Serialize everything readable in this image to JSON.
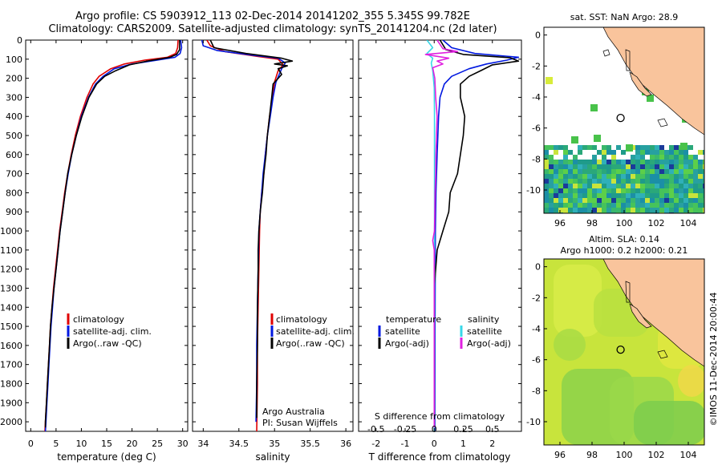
{
  "header": {
    "line1": "Argo profile: CS 5903912_113 02-Dec-2014 20141202_355 5.345S 99.782E",
    "line2": "Climatology: CARS2009. Satellite-adjusted climatology: synTS_20141204.nc (2d later)"
  },
  "colors": {
    "climatology": "#e00000",
    "satellite": "#0018e0",
    "argo": "#000000",
    "satellite_salinity": "#38d8e8",
    "argo_salinity_adj": "#e020e0",
    "land": "#f9c49c"
  },
  "chart_data": [
    {
      "type": "line",
      "name": "temperature-profile",
      "xlabel": "temperature (deg C)",
      "ylim": [
        2050,
        0
      ],
      "xlim": [
        -1,
        31
      ],
      "xticks": [
        0,
        5,
        10,
        15,
        20,
        25,
        30
      ],
      "yticks": [
        0,
        100,
        200,
        300,
        400,
        500,
        600,
        700,
        800,
        900,
        1000,
        1100,
        1200,
        1300,
        1400,
        1500,
        1600,
        1700,
        1800,
        1900,
        2000
      ],
      "legend": [
        "climatology",
        "satellite-adj. clim.",
        "Argo(..raw -QC)"
      ],
      "series": [
        {
          "name": "climatology",
          "color": "#e00000",
          "points": [
            [
              29.1,
              0
            ],
            [
              29.0,
              40
            ],
            [
              28.6,
              70
            ],
            [
              27.0,
              90
            ],
            [
              22.5,
              105
            ],
            [
              18.5,
              125
            ],
            [
              15.8,
              150
            ],
            [
              13.5,
              190
            ],
            [
              12.3,
              230
            ],
            [
              11.1,
              300
            ],
            [
              9.8,
              400
            ],
            [
              8.8,
              500
            ],
            [
              8.0,
              600
            ],
            [
              7.3,
              700
            ],
            [
              6.7,
              800
            ],
            [
              6.2,
              900
            ],
            [
              5.7,
              1000
            ],
            [
              5.3,
              1100
            ],
            [
              4.9,
              1200
            ],
            [
              4.5,
              1300
            ],
            [
              4.2,
              1400
            ],
            [
              3.9,
              1500
            ],
            [
              3.7,
              1600
            ],
            [
              3.5,
              1700
            ],
            [
              3.3,
              1800
            ],
            [
              3.1,
              1900
            ],
            [
              2.9,
              2000
            ],
            [
              2.8,
              2050
            ]
          ]
        },
        {
          "name": "satellite-adj. clim.",
          "color": "#0018e0",
          "points": [
            [
              29.6,
              0
            ],
            [
              29.8,
              40
            ],
            [
              29.5,
              70
            ],
            [
              28.5,
              90
            ],
            [
              25.0,
              105
            ],
            [
              20.0,
              125
            ],
            [
              16.5,
              150
            ],
            [
              14.3,
              190
            ],
            [
              12.8,
              230
            ],
            [
              11.4,
              300
            ],
            [
              10.0,
              400
            ],
            [
              9.0,
              500
            ],
            [
              8.1,
              600
            ],
            [
              7.4,
              700
            ],
            [
              6.8,
              800
            ],
            [
              6.3,
              900
            ],
            [
              5.8,
              1000
            ],
            [
              5.4,
              1100
            ],
            [
              5.0,
              1200
            ],
            [
              4.6,
              1300
            ],
            [
              4.3,
              1400
            ],
            [
              4.0,
              1500
            ],
            [
              3.8,
              1600
            ],
            [
              3.6,
              1700
            ],
            [
              3.4,
              1800
            ],
            [
              3.2,
              1900
            ],
            [
              3.0,
              2000
            ],
            [
              2.9,
              2050
            ]
          ]
        },
        {
          "name": "Argo(..raw -QC)",
          "color": "#000000",
          "points": [
            [
              29.4,
              0
            ],
            [
              29.4,
              50
            ],
            [
              28.8,
              75
            ],
            [
              27.5,
              90
            ],
            [
              23.0,
              110
            ],
            [
              19.5,
              130
            ],
            [
              16.8,
              160
            ],
            [
              14.6,
              190
            ],
            [
              13.0,
              230
            ],
            [
              11.5,
              300
            ],
            [
              10.1,
              400
            ],
            [
              9.0,
              500
            ],
            [
              8.1,
              600
            ],
            [
              7.3,
              700
            ],
            [
              6.8,
              800
            ],
            [
              6.3,
              900
            ],
            [
              5.8,
              1000
            ],
            [
              5.4,
              1100
            ],
            [
              5.0,
              1200
            ],
            [
              4.6,
              1300
            ],
            [
              4.2,
              1400
            ],
            [
              3.9,
              1500
            ],
            [
              3.7,
              1600
            ],
            [
              3.5,
              1700
            ],
            [
              3.3,
              1800
            ],
            [
              3.1,
              1900
            ],
            [
              2.9,
              2000
            ],
            [
              2.9,
              2030
            ]
          ]
        }
      ]
    },
    {
      "type": "line",
      "name": "salinity-profile",
      "xlabel": "salinity",
      "ylim": [
        2050,
        0
      ],
      "xlim": [
        33.85,
        36.1
      ],
      "xticks": [
        34,
        34.5,
        35,
        35.5,
        36
      ],
      "xticklabels": [
        "34",
        "34.5",
        "35",
        "35.5",
        "36"
      ],
      "legend": [
        "climatology",
        "satellite-adj. clim.",
        "Argo(..raw -QC)"
      ],
      "annotation": [
        "Argo Australia",
        "PI: Susan Wijffels"
      ],
      "series": [
        {
          "name": "climatology",
          "color": "#e00000",
          "points": [
            [
              34.05,
              0
            ],
            [
              34.1,
              30
            ],
            [
              34.3,
              60
            ],
            [
              34.75,
              85
            ],
            [
              35.05,
              100
            ],
            [
              35.12,
              130
            ],
            [
              35.05,
              160
            ],
            [
              35.0,
              220
            ],
            [
              34.97,
              300
            ],
            [
              34.93,
              400
            ],
            [
              34.9,
              500
            ],
            [
              34.87,
              600
            ],
            [
              34.85,
              700
            ],
            [
              34.82,
              800
            ],
            [
              34.8,
              900
            ],
            [
              34.79,
              1000
            ],
            [
              34.78,
              1200
            ],
            [
              34.77,
              1400
            ],
            [
              34.76,
              1600
            ],
            [
              34.76,
              1800
            ],
            [
              34.75,
              2050
            ]
          ]
        },
        {
          "name": "satellite-adj. clim.",
          "color": "#0018e0",
          "points": [
            [
              33.98,
              0
            ],
            [
              34.0,
              30
            ],
            [
              34.2,
              55
            ],
            [
              34.7,
              80
            ],
            [
              35.05,
              95
            ],
            [
              35.15,
              120
            ],
            [
              35.1,
              150
            ],
            [
              35.02,
              220
            ],
            [
              34.98,
              300
            ],
            [
              34.94,
              400
            ],
            [
              34.9,
              500
            ],
            [
              34.87,
              600
            ],
            [
              34.84,
              700
            ],
            [
              34.82,
              800
            ],
            [
              34.8,
              900
            ],
            [
              34.78,
              1000
            ],
            [
              34.77,
              1200
            ],
            [
              34.76,
              1400
            ],
            [
              34.75,
              1600
            ],
            [
              34.75,
              1800
            ],
            [
              34.74,
              2000
            ]
          ]
        },
        {
          "name": "Argo(..raw -QC)",
          "color": "#000000",
          "points": [
            [
              34.1,
              0
            ],
            [
              34.15,
              40
            ],
            [
              34.6,
              70
            ],
            [
              35.1,
              95
            ],
            [
              35.25,
              110
            ],
            [
              35.0,
              125
            ],
            [
              35.18,
              135
            ],
            [
              35.05,
              150
            ],
            [
              35.1,
              180
            ],
            [
              34.98,
              230
            ],
            [
              34.96,
              300
            ],
            [
              34.93,
              400
            ],
            [
              34.9,
              500
            ],
            [
              34.88,
              600
            ],
            [
              34.85,
              700
            ],
            [
              34.83,
              800
            ],
            [
              34.8,
              900
            ],
            [
              34.78,
              1000
            ],
            [
              34.77,
              1100
            ],
            [
              34.77,
              1200
            ],
            [
              34.76,
              1400
            ],
            [
              34.76,
              1600
            ],
            [
              34.75,
              1800
            ],
            [
              34.75,
              1980
            ]
          ]
        }
      ]
    },
    {
      "type": "line",
      "name": "difference-profile",
      "xlabel": "T difference from climatology",
      "xlabel_top": "S difference from climatology",
      "ylim": [
        2050,
        0
      ],
      "xlim": [
        -2.6,
        3.0
      ],
      "xticks": [
        -2,
        -1,
        0,
        1,
        2
      ],
      "xticklabels": [
        "-2",
        "-1",
        "0",
        "1",
        "2"
      ],
      "sticks": [
        -0.5,
        -0.25,
        0,
        0.25,
        0.5
      ],
      "sticklabels": [
        "-0.5",
        "-0.25",
        "0",
        "0.25",
        "0.5"
      ],
      "legend_temperature_title": "temperature",
      "legend_salinity_title": "salinity",
      "legend_temperature": [
        "satellite",
        "Argo(-adj)"
      ],
      "legend_salinity": [
        "satellite",
        "Argo(-adj)"
      ],
      "series": [
        {
          "name": "satellite",
          "color": "#0018e0",
          "points": [
            [
              0.3,
              0
            ],
            [
              0.6,
              40
            ],
            [
              1.4,
              70
            ],
            [
              2.9,
              90
            ],
            [
              2.5,
              105
            ],
            [
              1.8,
              125
            ],
            [
              1.2,
              150
            ],
            [
              0.6,
              190
            ],
            [
              0.35,
              230
            ],
            [
              0.2,
              300
            ],
            [
              0.15,
              400
            ],
            [
              0.1,
              600
            ],
            [
              0.06,
              800
            ],
            [
              0.04,
              1000
            ],
            [
              0.03,
              1500
            ],
            [
              0.02,
              2050
            ]
          ]
        },
        {
          "name": "Argo(-adj)",
          "color": "#000000",
          "points": [
            [
              0.2,
              0
            ],
            [
              0.4,
              50
            ],
            [
              1.0,
              75
            ],
            [
              2.6,
              92
            ],
            [
              2.9,
              110
            ],
            [
              2.0,
              130
            ],
            [
              1.6,
              160
            ],
            [
              1.2,
              190
            ],
            [
              0.9,
              230
            ],
            [
              0.9,
              300
            ],
            [
              1.05,
              400
            ],
            [
              1.0,
              500
            ],
            [
              0.9,
              600
            ],
            [
              0.8,
              700
            ],
            [
              0.55,
              800
            ],
            [
              0.5,
              900
            ],
            [
              0.3,
              1000
            ],
            [
              0.1,
              1100
            ],
            [
              0.05,
              1200
            ],
            [
              0.0,
              1300
            ],
            [
              0.0,
              2030
            ]
          ]
        },
        {
          "name": "satellite",
          "color": "#38d8e8",
          "points": [
            [
              -0.25,
              0
            ],
            [
              -0.05,
              40
            ],
            [
              -0.25,
              70
            ],
            [
              -0.05,
              95
            ],
            [
              -0.1,
              120
            ],
            [
              -0.05,
              160
            ],
            [
              0.0,
              250
            ],
            [
              0.01,
              400
            ],
            [
              0.01,
              700
            ],
            [
              0.01,
              1000
            ],
            [
              0.01,
              1500
            ],
            [
              0.0,
              2050
            ]
          ]
        },
        {
          "name": "Argo(-adj)",
          "color": "#e020e0",
          "points": [
            [
              0.1,
              0
            ],
            [
              0.3,
              45
            ],
            [
              0.8,
              60
            ],
            [
              -0.3,
              75
            ],
            [
              0.5,
              95
            ],
            [
              0.1,
              110
            ],
            [
              0.3,
              125
            ],
            [
              -0.05,
              145
            ],
            [
              0.02,
              200
            ],
            [
              0.05,
              300
            ],
            [
              0.1,
              400
            ],
            [
              0.08,
              500
            ],
            [
              0.06,
              600
            ],
            [
              0.05,
              700
            ],
            [
              0.03,
              800
            ],
            [
              0.02,
              900
            ],
            [
              0.01,
              1000
            ],
            [
              -0.05,
              1050
            ],
            [
              0.0,
              1100
            ],
            [
              0.0,
              2030
            ]
          ]
        }
      ]
    },
    {
      "type": "heatmap",
      "name": "sst-map",
      "title": "sat. SST: NaN Argo: 28.9",
      "xlim": [
        95,
        105
      ],
      "ylim": [
        -11.5,
        0.5
      ],
      "xticks": [
        96,
        98,
        100,
        102,
        104
      ],
      "yticks": [
        0,
        -2,
        -4,
        -6,
        -8,
        -10
      ],
      "argo_position": [
        99.78,
        -5.35
      ]
    },
    {
      "type": "heatmap",
      "name": "sla-map",
      "title": "Altim. SLA: 0.14",
      "subtitle": "Argo h1000: 0.2 h2000: 0.21",
      "xlim": [
        95,
        105
      ],
      "ylim": [
        -11.5,
        0.5
      ],
      "xticks": [
        96,
        98,
        100,
        102,
        104
      ],
      "yticks": [
        0,
        -2,
        -4,
        -6,
        -8,
        -10
      ],
      "argo_position": [
        99.78,
        -5.35
      ]
    }
  ],
  "credit": "©IMOS 11-Dec-2014 20:00:44"
}
